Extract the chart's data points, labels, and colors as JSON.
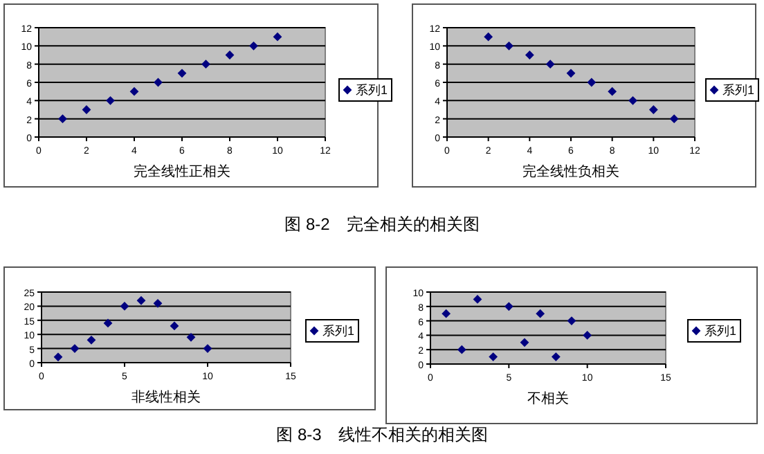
{
  "chart_data": [
    {
      "type": "scatter",
      "xlabel": "完全线性正相关",
      "x": [
        1,
        2,
        3,
        4,
        5,
        6,
        7,
        8,
        9,
        10
      ],
      "xlim": [
        0,
        12
      ],
      "xticks": [
        0,
        2,
        4,
        6,
        8,
        10,
        12
      ],
      "ylim": [
        0,
        12
      ],
      "yticks": [
        0,
        2,
        4,
        6,
        8,
        10,
        12
      ],
      "grid": "y",
      "legend": "right",
      "marker": "diamond",
      "series": [
        {
          "name": "系列1",
          "color": "#000080",
          "values": [
            2,
            3,
            4,
            5,
            6,
            7,
            8,
            9,
            10,
            11
          ]
        }
      ]
    },
    {
      "type": "scatter",
      "xlabel": "完全线性负相关",
      "x": [
        2,
        3,
        4,
        5,
        6,
        7,
        8,
        9,
        10,
        11
      ],
      "xlim": [
        0,
        12
      ],
      "xticks": [
        0,
        2,
        4,
        6,
        8,
        10,
        12
      ],
      "ylim": [
        0,
        12
      ],
      "yticks": [
        0,
        2,
        4,
        6,
        8,
        10,
        12
      ],
      "grid": "y",
      "legend": "right",
      "marker": "diamond",
      "annotations": [
        "图 8-2　完全相关的相关图"
      ],
      "series": [
        {
          "name": "系列1",
          "color": "#000080",
          "values": [
            11,
            10,
            9,
            8,
            7,
            6,
            5,
            4,
            3,
            2
          ]
        }
      ]
    },
    {
      "type": "scatter",
      "xlabel": "非线性相关",
      "x": [
        1,
        2,
        3,
        4,
        5,
        6,
        7,
        8,
        9,
        10
      ],
      "xlim": [
        0,
        15
      ],
      "xticks": [
        0,
        5,
        10,
        15
      ],
      "ylim": [
        0,
        25
      ],
      "yticks": [
        0,
        5,
        10,
        15,
        20,
        25
      ],
      "grid": "y",
      "legend": "right",
      "marker": "diamond",
      "series": [
        {
          "name": "系列1",
          "color": "#000080",
          "values": [
            2,
            5,
            8,
            14,
            20,
            22,
            21,
            13,
            9,
            5
          ]
        }
      ]
    },
    {
      "type": "scatter",
      "xlabel": "不相关",
      "x": [
        1,
        2,
        3,
        4,
        5,
        6,
        7,
        8,
        9,
        10
      ],
      "xlim": [
        0,
        15
      ],
      "xticks": [
        0,
        5,
        10,
        15
      ],
      "ylim": [
        0,
        10
      ],
      "yticks": [
        0,
        2,
        4,
        6,
        8,
        10
      ],
      "grid": "y",
      "legend": "right",
      "marker": "diamond",
      "annotations": [
        "图 8-3　线性不相关的相关图"
      ],
      "series": [
        {
          "name": "系列1",
          "color": "#000080",
          "values": [
            7,
            2,
            9,
            1,
            8,
            3,
            7,
            1,
            6,
            4
          ]
        }
      ]
    }
  ]
}
